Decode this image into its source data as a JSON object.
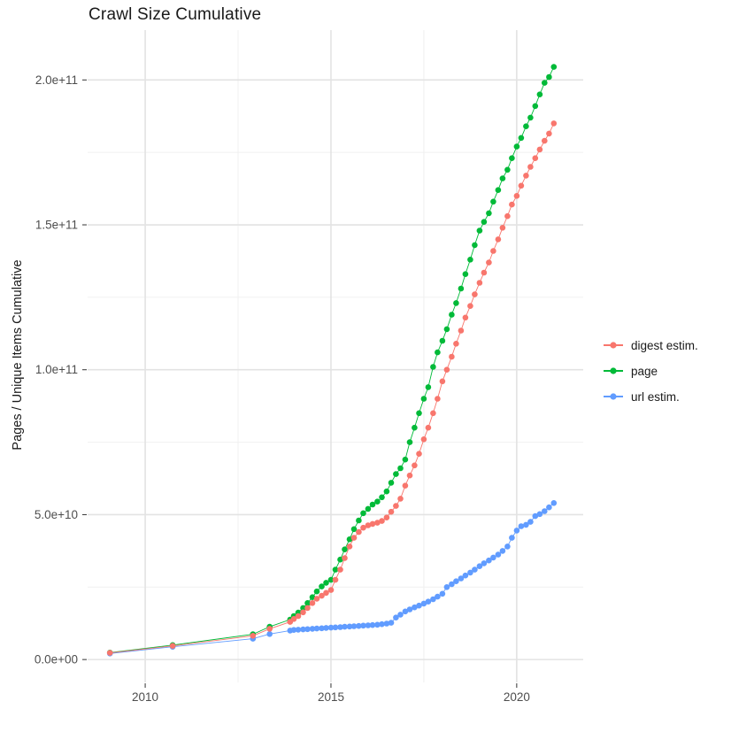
{
  "title": "Crawl Size Cumulative",
  "chart_data": {
    "type": "line",
    "title": "Crawl Size Cumulative",
    "xlabel": "",
    "ylabel": "Pages / Unique Items Cumulative",
    "grid": true,
    "legend_position": "right",
    "xlim": [
      2008.45,
      2021.79
    ],
    "ylim": [
      -7900000000.0,
      217200000000.0
    ],
    "x_ticks": [
      {
        "value": 2010,
        "label": "2010"
      },
      {
        "value": 2015,
        "label": "2015"
      },
      {
        "value": 2020,
        "label": "2020"
      }
    ],
    "x_minor": [
      2012.5,
      2017.5
    ],
    "y_ticks": [
      {
        "value": 0.0,
        "label": "0.0e+00"
      },
      {
        "value": 50000000000.0,
        "label": "5.0e+10"
      },
      {
        "value": 100000000000.0,
        "label": "1.0e+11"
      },
      {
        "value": 150000000000.0,
        "label": "1.5e+11"
      },
      {
        "value": 200000000000.0,
        "label": "2.0e+11"
      }
    ],
    "y_minor": [
      25000000000.0,
      75000000000.0,
      125000000000.0,
      175000000000.0
    ],
    "draw_order": [
      1,
      2,
      0
    ],
    "series": [
      {
        "name": "digest estim.",
        "color": "#F8766D",
        "points": [
          [
            2009.05,
            2300000000.0
          ],
          [
            2010.74,
            4700000000.0
          ],
          [
            2012.9,
            8200000000.0
          ],
          [
            2013.35,
            10600000000.0
          ],
          [
            2013.9,
            13000000000.0
          ],
          [
            2014.0,
            14000000000.0
          ],
          [
            2014.12,
            15000000000.0
          ],
          [
            2014.25,
            16300000000.0
          ],
          [
            2014.37,
            17800000000.0
          ],
          [
            2014.5,
            19500000000.0
          ],
          [
            2014.62,
            21000000000.0
          ],
          [
            2014.75,
            22000000000.0
          ],
          [
            2014.87,
            23000000000.0
          ],
          [
            2015.0,
            24000000000.0
          ],
          [
            2015.12,
            27500000000.0
          ],
          [
            2015.25,
            31000000000.0
          ],
          [
            2015.37,
            35000000000.0
          ],
          [
            2015.5,
            39000000000.0
          ],
          [
            2015.62,
            42000000000.0
          ],
          [
            2015.75,
            44000000000.0
          ],
          [
            2015.87,
            45500000000.0
          ],
          [
            2016.0,
            46300000000.0
          ],
          [
            2016.12,
            46800000000.0
          ],
          [
            2016.25,
            47200000000.0
          ],
          [
            2016.37,
            47800000000.0
          ],
          [
            2016.5,
            49000000000.0
          ],
          [
            2016.62,
            51000000000.0
          ],
          [
            2016.75,
            53000000000.0
          ],
          [
            2016.87,
            55500000000.0
          ],
          [
            2017.0,
            60000000000.0
          ],
          [
            2017.12,
            63500000000.0
          ],
          [
            2017.25,
            67000000000.0
          ],
          [
            2017.37,
            71000000000.0
          ],
          [
            2017.5,
            76000000000.0
          ],
          [
            2017.62,
            80000000000.0
          ],
          [
            2017.75,
            85000000000.0
          ],
          [
            2017.87,
            90000000000.0
          ],
          [
            2018.0,
            96000000000.0
          ],
          [
            2018.12,
            100000000000.0
          ],
          [
            2018.25,
            104500000000.0
          ],
          [
            2018.37,
            109000000000.0
          ],
          [
            2018.5,
            113500000000.0
          ],
          [
            2018.62,
            118000000000.0
          ],
          [
            2018.75,
            122000000000.0
          ],
          [
            2018.87,
            126000000000.0
          ],
          [
            2019.0,
            130000000000.0
          ],
          [
            2019.12,
            133500000000.0
          ],
          [
            2019.25,
            137000000000.0
          ],
          [
            2019.37,
            141000000000.0
          ],
          [
            2019.5,
            145000000000.0
          ],
          [
            2019.62,
            149000000000.0
          ],
          [
            2019.75,
            153000000000.0
          ],
          [
            2019.87,
            157000000000.0
          ],
          [
            2020.0,
            160000000000.0
          ],
          [
            2020.12,
            163500000000.0
          ],
          [
            2020.25,
            167000000000.0
          ],
          [
            2020.37,
            170000000000.0
          ],
          [
            2020.5,
            173000000000.0
          ],
          [
            2020.62,
            176000000000.0
          ],
          [
            2020.75,
            179000000000.0
          ],
          [
            2020.87,
            181500000000.0
          ],
          [
            2021.0,
            185000000000.0
          ]
        ]
      },
      {
        "name": "page",
        "color": "#00BA38",
        "points": [
          [
            2009.05,
            2400000000.0
          ],
          [
            2010.74,
            5000000000.0
          ],
          [
            2012.9,
            8700000000.0
          ],
          [
            2013.35,
            11300000000.0
          ],
          [
            2013.9,
            13800000000.0
          ],
          [
            2014.0,
            15000000000.0
          ],
          [
            2014.12,
            16200000000.0
          ],
          [
            2014.25,
            17800000000.0
          ],
          [
            2014.37,
            19500000000.0
          ],
          [
            2014.5,
            21500000000.0
          ],
          [
            2014.62,
            23500000000.0
          ],
          [
            2014.75,
            25200000000.0
          ],
          [
            2014.87,
            26500000000.0
          ],
          [
            2015.0,
            27500000000.0
          ],
          [
            2015.12,
            31000000000.0
          ],
          [
            2015.25,
            34500000000.0
          ],
          [
            2015.37,
            38000000000.0
          ],
          [
            2015.5,
            41500000000.0
          ],
          [
            2015.62,
            45000000000.0
          ],
          [
            2015.75,
            48000000000.0
          ],
          [
            2015.87,
            50500000000.0
          ],
          [
            2016.0,
            52000000000.0
          ],
          [
            2016.12,
            53500000000.0
          ],
          [
            2016.25,
            54500000000.0
          ],
          [
            2016.37,
            56000000000.0
          ],
          [
            2016.5,
            58000000000.0
          ],
          [
            2016.62,
            61000000000.0
          ],
          [
            2016.75,
            64000000000.0
          ],
          [
            2016.87,
            66000000000.0
          ],
          [
            2017.0,
            69000000000.0
          ],
          [
            2017.12,
            75000000000.0
          ],
          [
            2017.25,
            80000000000.0
          ],
          [
            2017.37,
            85000000000.0
          ],
          [
            2017.5,
            90000000000.0
          ],
          [
            2017.62,
            94000000000.0
          ],
          [
            2017.75,
            101000000000.0
          ],
          [
            2017.87,
            106000000000.0
          ],
          [
            2018.0,
            110000000000.0
          ],
          [
            2018.12,
            114000000000.0
          ],
          [
            2018.25,
            119000000000.0
          ],
          [
            2018.37,
            123000000000.0
          ],
          [
            2018.5,
            128000000000.0
          ],
          [
            2018.62,
            133000000000.0
          ],
          [
            2018.75,
            138000000000.0
          ],
          [
            2018.87,
            143000000000.0
          ],
          [
            2019.0,
            148000000000.0
          ],
          [
            2019.12,
            151000000000.0
          ],
          [
            2019.25,
            154000000000.0
          ],
          [
            2019.37,
            158000000000.0
          ],
          [
            2019.5,
            162000000000.0
          ],
          [
            2019.62,
            166000000000.0
          ],
          [
            2019.75,
            169000000000.0
          ],
          [
            2019.87,
            173000000000.0
          ],
          [
            2020.0,
            177000000000.0
          ],
          [
            2020.12,
            180000000000.0
          ],
          [
            2020.25,
            184000000000.0
          ],
          [
            2020.37,
            187000000000.0
          ],
          [
            2020.5,
            191000000000.0
          ],
          [
            2020.62,
            195000000000.0
          ],
          [
            2020.75,
            199000000000.0
          ],
          [
            2020.87,
            201000000000.0
          ],
          [
            2021.0,
            204500000000.0
          ]
        ]
      },
      {
        "name": "url estim.",
        "color": "#619CFF",
        "points": [
          [
            2009.05,
            2100000000.0
          ],
          [
            2010.74,
            4400000000.0
          ],
          [
            2012.9,
            7200000000.0
          ],
          [
            2013.35,
            8800000000.0
          ],
          [
            2013.9,
            10000000000.0
          ],
          [
            2014.0,
            10200000000.0
          ],
          [
            2014.12,
            10300000000.0
          ],
          [
            2014.25,
            10400000000.0
          ],
          [
            2014.37,
            10500000000.0
          ],
          [
            2014.5,
            10600000000.0
          ],
          [
            2014.62,
            10700000000.0
          ],
          [
            2014.75,
            10800000000.0
          ],
          [
            2014.87,
            10900000000.0
          ],
          [
            2015.0,
            11000000000.0
          ],
          [
            2015.12,
            11100000000.0
          ],
          [
            2015.25,
            11200000000.0
          ],
          [
            2015.37,
            11300000000.0
          ],
          [
            2015.5,
            11400000000.0
          ],
          [
            2015.62,
            11500000000.0
          ],
          [
            2015.75,
            11600000000.0
          ],
          [
            2015.87,
            11700000000.0
          ],
          [
            2016.0,
            11800000000.0
          ],
          [
            2016.12,
            11900000000.0
          ],
          [
            2016.25,
            12000000000.0
          ],
          [
            2016.37,
            12200000000.0
          ],
          [
            2016.5,
            12400000000.0
          ],
          [
            2016.62,
            12700000000.0
          ],
          [
            2016.75,
            14500000000.0
          ],
          [
            2016.87,
            15500000000.0
          ],
          [
            2017.0,
            16600000000.0
          ],
          [
            2017.12,
            17300000000.0
          ],
          [
            2017.25,
            18000000000.0
          ],
          [
            2017.37,
            18600000000.0
          ],
          [
            2017.5,
            19300000000.0
          ],
          [
            2017.62,
            20000000000.0
          ],
          [
            2017.75,
            20800000000.0
          ],
          [
            2017.87,
            21700000000.0
          ],
          [
            2018.0,
            22700000000.0
          ],
          [
            2018.12,
            25000000000.0
          ],
          [
            2018.25,
            26000000000.0
          ],
          [
            2018.37,
            27000000000.0
          ],
          [
            2018.5,
            28000000000.0
          ],
          [
            2018.62,
            29000000000.0
          ],
          [
            2018.75,
            30000000000.0
          ],
          [
            2018.87,
            31000000000.0
          ],
          [
            2019.0,
            32200000000.0
          ],
          [
            2019.12,
            33200000000.0
          ],
          [
            2019.25,
            34200000000.0
          ],
          [
            2019.37,
            35200000000.0
          ],
          [
            2019.5,
            36200000000.0
          ],
          [
            2019.62,
            37500000000.0
          ],
          [
            2019.75,
            39000000000.0
          ],
          [
            2019.87,
            42000000000.0
          ],
          [
            2020.0,
            44500000000.0
          ],
          [
            2020.12,
            46000000000.0
          ],
          [
            2020.25,
            46500000000.0
          ],
          [
            2020.37,
            47500000000.0
          ],
          [
            2020.5,
            49500000000.0
          ],
          [
            2020.62,
            50200000000.0
          ],
          [
            2020.75,
            51200000000.0
          ],
          [
            2020.87,
            52500000000.0
          ],
          [
            2021.0,
            54000000000.0
          ]
        ]
      }
    ],
    "style": {
      "grid_major_color": "#E3E3E3",
      "grid_minor_color": "#F0F0F0",
      "tick_mark_color": "#333333",
      "tick_label_color": "#4D4D4D",
      "point_radius": 3.3
    }
  }
}
